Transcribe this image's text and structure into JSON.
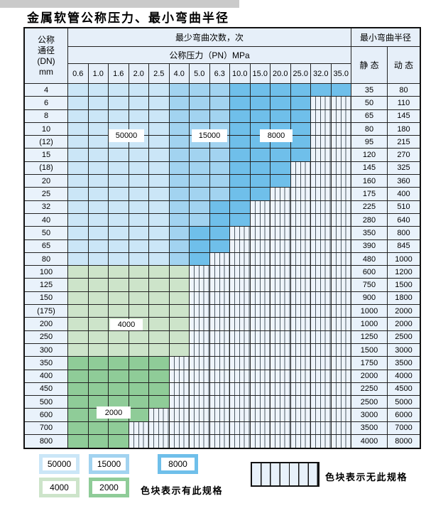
{
  "page": {
    "title": "金属软管公称压力、最小弯曲半径"
  },
  "table": {
    "corner_header": [
      "公称",
      "通径",
      "(DN)",
      "mm"
    ],
    "cycles_header": "最少弯曲次数，次",
    "pressure_header": "公称压力（PN）MPa",
    "radius_header": "最小弯曲半径",
    "static_header": "静 态",
    "dynamic_header": "动 态",
    "pressure_columns": [
      "0.6",
      "1.0",
      "1.6",
      "2.0",
      "2.5",
      "4.0",
      "5.0",
      "6.3",
      "10.0",
      "15.0",
      "20.0",
      "25.0",
      "32.0",
      "35.0"
    ],
    "rows": [
      {
        "dn": "4",
        "cycles": [
          50000,
          50000,
          50000,
          50000,
          50000,
          15000,
          15000,
          15000,
          8000,
          8000,
          8000,
          8000,
          8000,
          8000
        ],
        "static": "35",
        "dynamic": "80"
      },
      {
        "dn": "6",
        "cycles": [
          50000,
          50000,
          50000,
          50000,
          50000,
          15000,
          15000,
          15000,
          8000,
          8000,
          8000,
          8000,
          null,
          null
        ],
        "static": "50",
        "dynamic": "110"
      },
      {
        "dn": "8",
        "cycles": [
          50000,
          50000,
          50000,
          50000,
          50000,
          15000,
          15000,
          15000,
          8000,
          8000,
          8000,
          8000,
          null,
          null
        ],
        "static": "65",
        "dynamic": "145"
      },
      {
        "dn": "10",
        "cycles": [
          50000,
          50000,
          50000,
          50000,
          50000,
          15000,
          15000,
          15000,
          8000,
          8000,
          8000,
          8000,
          null,
          null
        ],
        "static": "80",
        "dynamic": "180"
      },
      {
        "dn": "(12)",
        "cycles": [
          50000,
          50000,
          50000,
          50000,
          50000,
          15000,
          15000,
          15000,
          8000,
          8000,
          8000,
          8000,
          null,
          null
        ],
        "static": "95",
        "dynamic": "215"
      },
      {
        "dn": "15",
        "cycles": [
          50000,
          50000,
          50000,
          50000,
          50000,
          15000,
          15000,
          15000,
          8000,
          8000,
          8000,
          8000,
          null,
          null
        ],
        "static": "120",
        "dynamic": "270"
      },
      {
        "dn": "(18)",
        "cycles": [
          50000,
          50000,
          50000,
          50000,
          50000,
          15000,
          15000,
          15000,
          8000,
          8000,
          8000,
          null,
          null,
          null
        ],
        "static": "145",
        "dynamic": "325"
      },
      {
        "dn": "20",
        "cycles": [
          50000,
          50000,
          50000,
          50000,
          50000,
          15000,
          15000,
          15000,
          8000,
          8000,
          8000,
          null,
          null,
          null
        ],
        "static": "160",
        "dynamic": "360"
      },
      {
        "dn": "25",
        "cycles": [
          50000,
          50000,
          50000,
          50000,
          50000,
          15000,
          15000,
          15000,
          8000,
          8000,
          null,
          null,
          null,
          null
        ],
        "static": "175",
        "dynamic": "400"
      },
      {
        "dn": "32",
        "cycles": [
          50000,
          50000,
          50000,
          50000,
          50000,
          15000,
          15000,
          8000,
          8000,
          null,
          null,
          null,
          null,
          null
        ],
        "static": "225",
        "dynamic": "510"
      },
      {
        "dn": "40",
        "cycles": [
          50000,
          50000,
          50000,
          50000,
          50000,
          15000,
          15000,
          8000,
          8000,
          null,
          null,
          null,
          null,
          null
        ],
        "static": "280",
        "dynamic": "640"
      },
      {
        "dn": "50",
        "cycles": [
          50000,
          50000,
          50000,
          50000,
          50000,
          15000,
          8000,
          8000,
          null,
          null,
          null,
          null,
          null,
          null
        ],
        "static": "350",
        "dynamic": "800"
      },
      {
        "dn": "65",
        "cycles": [
          50000,
          50000,
          50000,
          50000,
          50000,
          15000,
          8000,
          8000,
          null,
          null,
          null,
          null,
          null,
          null
        ],
        "static": "390",
        "dynamic": "845"
      },
      {
        "dn": "80",
        "cycles": [
          50000,
          50000,
          50000,
          50000,
          50000,
          15000,
          8000,
          null,
          null,
          null,
          null,
          null,
          null,
          null
        ],
        "static": "480",
        "dynamic": "1000"
      },
      {
        "dn": "100",
        "cycles": [
          4000,
          4000,
          4000,
          4000,
          4000,
          4000,
          null,
          null,
          null,
          null,
          null,
          null,
          null,
          null
        ],
        "static": "600",
        "dynamic": "1200"
      },
      {
        "dn": "125",
        "cycles": [
          4000,
          4000,
          4000,
          4000,
          4000,
          4000,
          null,
          null,
          null,
          null,
          null,
          null,
          null,
          null
        ],
        "static": "750",
        "dynamic": "1500"
      },
      {
        "dn": "150",
        "cycles": [
          4000,
          4000,
          4000,
          4000,
          4000,
          4000,
          null,
          null,
          null,
          null,
          null,
          null,
          null,
          null
        ],
        "static": "900",
        "dynamic": "1800"
      },
      {
        "dn": "(175)",
        "cycles": [
          4000,
          4000,
          4000,
          4000,
          4000,
          4000,
          null,
          null,
          null,
          null,
          null,
          null,
          null,
          null
        ],
        "static": "1000",
        "dynamic": "2000"
      },
      {
        "dn": "200",
        "cycles": [
          4000,
          4000,
          4000,
          4000,
          4000,
          4000,
          null,
          null,
          null,
          null,
          null,
          null,
          null,
          null
        ],
        "static": "1000",
        "dynamic": "2000"
      },
      {
        "dn": "250",
        "cycles": [
          4000,
          4000,
          4000,
          4000,
          4000,
          4000,
          null,
          null,
          null,
          null,
          null,
          null,
          null,
          null
        ],
        "static": "1250",
        "dynamic": "2500"
      },
      {
        "dn": "300",
        "cycles": [
          4000,
          4000,
          4000,
          4000,
          4000,
          4000,
          null,
          null,
          null,
          null,
          null,
          null,
          null,
          null
        ],
        "static": "1500",
        "dynamic": "3000"
      },
      {
        "dn": "350",
        "cycles": [
          2000,
          2000,
          2000,
          2000,
          2000,
          null,
          null,
          null,
          null,
          null,
          null,
          null,
          null,
          null
        ],
        "static": "1750",
        "dynamic": "3500"
      },
      {
        "dn": "400",
        "cycles": [
          2000,
          2000,
          2000,
          2000,
          2000,
          null,
          null,
          null,
          null,
          null,
          null,
          null,
          null,
          null
        ],
        "static": "2000",
        "dynamic": "4000"
      },
      {
        "dn": "450",
        "cycles": [
          2000,
          2000,
          2000,
          2000,
          2000,
          null,
          null,
          null,
          null,
          null,
          null,
          null,
          null,
          null
        ],
        "static": "2250",
        "dynamic": "4500"
      },
      {
        "dn": "500",
        "cycles": [
          2000,
          2000,
          2000,
          2000,
          2000,
          null,
          null,
          null,
          null,
          null,
          null,
          null,
          null,
          null
        ],
        "static": "2500",
        "dynamic": "5000"
      },
      {
        "dn": "600",
        "cycles": [
          2000,
          2000,
          2000,
          2000,
          null,
          null,
          null,
          null,
          null,
          null,
          null,
          null,
          null,
          null
        ],
        "static": "3000",
        "dynamic": "6000"
      },
      {
        "dn": "700",
        "cycles": [
          2000,
          2000,
          2000,
          null,
          null,
          null,
          null,
          null,
          null,
          null,
          null,
          null,
          null,
          null
        ],
        "static": "3500",
        "dynamic": "7000"
      },
      {
        "dn": "800",
        "cycles": [
          2000,
          2000,
          2000,
          null,
          null,
          null,
          null,
          null,
          null,
          null,
          null,
          null,
          null,
          null
        ],
        "static": "4000",
        "dynamic": "8000"
      }
    ]
  },
  "zone_labels": [
    "50000",
    "15000",
    "8000",
    "4000",
    "2000"
  ],
  "legend": {
    "items": [
      {
        "label": "50000",
        "key": "c50000"
      },
      {
        "label": "15000",
        "key": "c15000"
      },
      {
        "label": "8000",
        "key": "c8000"
      },
      {
        "label": "4000",
        "key": "c4000"
      },
      {
        "label": "2000",
        "key": "c2000"
      }
    ],
    "has_spec_text": "色块表示有此规格",
    "no_spec_text": "色块表示无此规格"
  },
  "colors": {
    "c50000": "#cbe6f7",
    "c15000": "#a2d3f0",
    "c8000": "#6fbfea",
    "c4000": "#cde4ca",
    "c2000": "#8fcc98",
    "no_spec_fill": "#eef4fb",
    "row_bg": "#e9f2fb",
    "header_bg": "#e6eff9"
  }
}
